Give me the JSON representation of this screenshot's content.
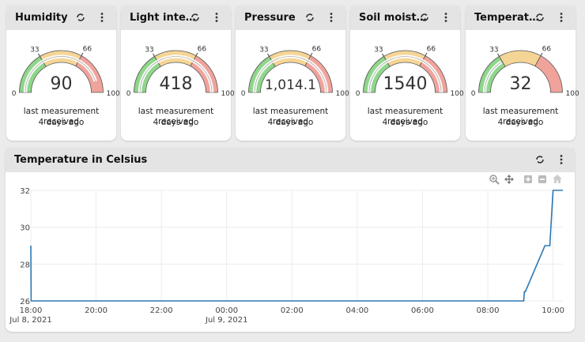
{
  "gauges": [
    {
      "title": "Humidity",
      "value": 90,
      "display": "90",
      "min": 0,
      "max": 100,
      "tick_low": 33,
      "tick_high": 66,
      "status": "last measurement received",
      "ago": "4 days ago"
    },
    {
      "title": "Light inte…",
      "value": 418,
      "display": "418",
      "min": 0,
      "max": 100,
      "tick_low": 33,
      "tick_high": 66,
      "status": "last measurement received",
      "ago": "4 days ago"
    },
    {
      "title": "Pressure",
      "value": 1014.1,
      "display": "1,014.1",
      "min": 0,
      "max": 100,
      "tick_low": 33,
      "tick_high": 66,
      "status": "last measurement received",
      "ago": "4 days ago"
    },
    {
      "title": "Soil moist…",
      "value": 1540,
      "display": "1540",
      "min": 0,
      "max": 100,
      "tick_low": 33,
      "tick_high": 66,
      "status": "last measurement received",
      "ago": "4 days ago"
    },
    {
      "title": "Temperat…",
      "value": 32,
      "display": "32",
      "min": 0,
      "max": 100,
      "tick_low": 33,
      "tick_high": 66,
      "status": "last measurement received",
      "ago": "4 days ago"
    }
  ],
  "colors": {
    "green": "#8fd68b",
    "yellow": "#f5d596",
    "red": "#f0a39b",
    "line": "#2b78b5",
    "grid": "#ececec"
  },
  "chart": {
    "title": "Temperature in Celsius",
    "icons": [
      "zoom-in-icon",
      "pan-icon",
      "plus-icon",
      "minus-icon",
      "home-icon"
    ]
  },
  "chart_data": {
    "type": "line",
    "title": "Temperature in Celsius",
    "xlabel": "",
    "ylabel": "",
    "ylim": [
      26,
      32
    ],
    "yticks": [
      "26",
      "28",
      "30",
      "32"
    ],
    "xticks": [
      "18:00",
      "20:00",
      "22:00",
      "00:00",
      "02:00",
      "04:00",
      "06:00",
      "08:00",
      "10:00"
    ],
    "xdates": [
      "Jul 8, 2021",
      "",
      "",
      "Jul 9, 2021",
      "",
      "",
      "",
      "",
      ""
    ],
    "xrange_hours": [
      18,
      34.3
    ],
    "series": [
      {
        "name": "Temperature",
        "points": [
          [
            18.0,
            29
          ],
          [
            18.01,
            26
          ],
          [
            33.1,
            26
          ],
          [
            33.12,
            26.5
          ],
          [
            33.15,
            26.5
          ],
          [
            33.75,
            29
          ],
          [
            33.9,
            29
          ],
          [
            34.0,
            32
          ],
          [
            34.3,
            32
          ]
        ]
      }
    ]
  }
}
